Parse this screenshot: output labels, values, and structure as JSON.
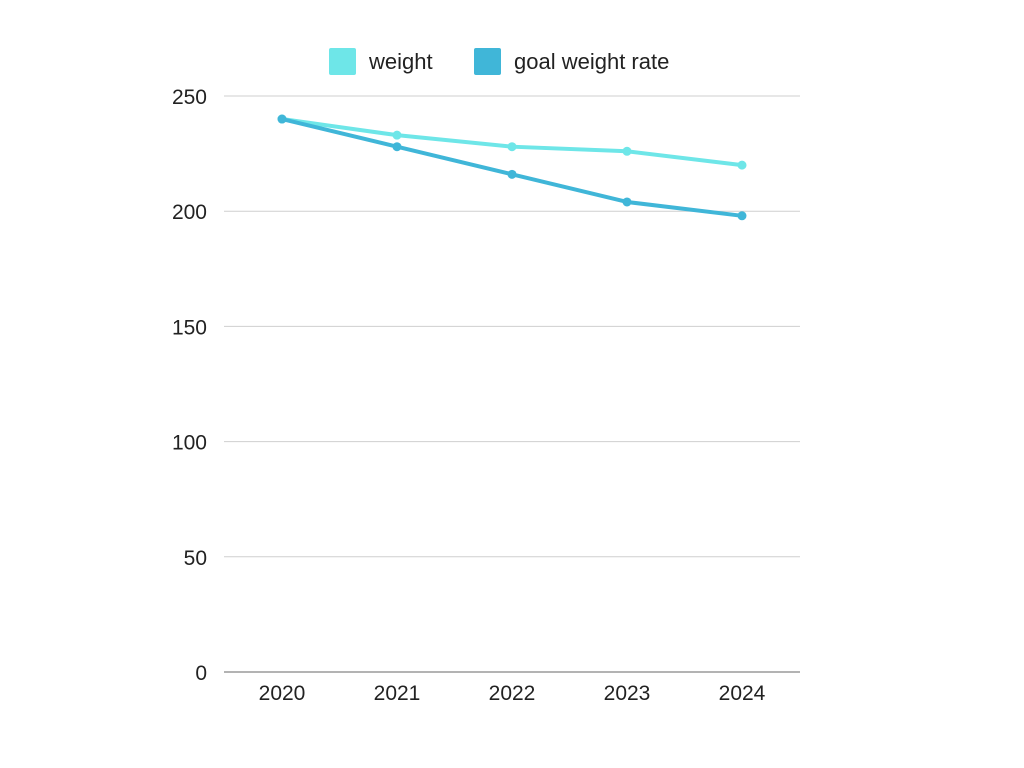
{
  "chart_data": {
    "type": "line",
    "title": "",
    "xlabel": "",
    "ylabel": "",
    "categories": [
      "2020",
      "2021",
      "2022",
      "2023",
      "2024"
    ],
    "yticks": [
      "0",
      "50",
      "100",
      "150",
      "200",
      "250"
    ],
    "ylim": [
      0,
      250
    ],
    "grid": true,
    "legend": "top-center",
    "series": [
      {
        "name": "weight",
        "color": "#6ee6e8",
        "values": [
          240,
          233,
          228,
          226,
          220
        ]
      },
      {
        "name": "goal weight rate",
        "color": "#40b6d8",
        "values": [
          240,
          228,
          216,
          204,
          198
        ]
      }
    ]
  }
}
